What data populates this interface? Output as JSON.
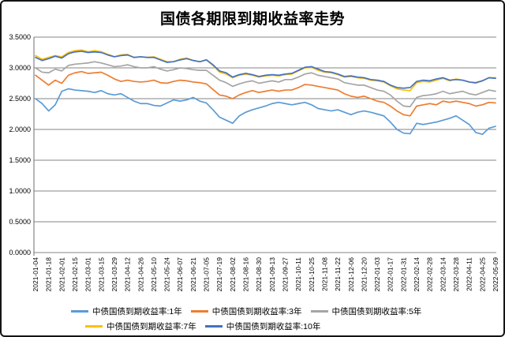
{
  "title": "国债各期限到期收益率走势",
  "chart_data": {
    "type": "line",
    "title": "国债各期限到期收益率走势",
    "xlabel": "",
    "ylabel": "",
    "ylim": [
      0,
      3.5
    ],
    "grid": true,
    "legend_position": "bottom",
    "y_ticks": [
      0,
      0.5,
      1.0,
      1.5,
      2.0,
      2.5,
      3.0,
      3.5
    ],
    "y_tick_labels": [
      "0.0000",
      "0.5000",
      "1.0000",
      "1.5000",
      "2.0000",
      "2.5000",
      "3.0000",
      "3.5000"
    ],
    "x_tick_labels": [
      "2021-01-04",
      "2021-01-18",
      "2021-02-01",
      "2021-02-15",
      "2021-03-01",
      "2021-03-15",
      "2021-03-29",
      "2021-04-12",
      "2021-04-26",
      "2021-05-10",
      "2021-05-24",
      "2021-06-07",
      "2021-06-21",
      "2021-07-05",
      "2021-07-19",
      "2021-08-02",
      "2021-08-16",
      "2021-08-30",
      "2021-09-13",
      "2021-09-27",
      "2021-10-11",
      "2021-10-25",
      "2021-11-08",
      "2021-11-22",
      "2021-12-06",
      "2021-12-20",
      "2022-01-03",
      "2022-01-17",
      "2022-01-31",
      "2022-02-14",
      "2022-02-28",
      "2022-03-14",
      "2022-03-28",
      "2022-04-11",
      "2022-04-25",
      "2022-05-09"
    ],
    "points_per_tick": 2,
    "series": [
      {
        "name": "中债国债到期收益率:1年",
        "color": "#5B9BD5",
        "values": [
          2.5,
          2.42,
          2.3,
          2.4,
          2.62,
          2.66,
          2.64,
          2.63,
          2.62,
          2.6,
          2.63,
          2.58,
          2.56,
          2.58,
          2.52,
          2.46,
          2.42,
          2.42,
          2.39,
          2.38,
          2.43,
          2.48,
          2.46,
          2.48,
          2.52,
          2.46,
          2.43,
          2.32,
          2.2,
          2.15,
          2.1,
          2.22,
          2.28,
          2.32,
          2.35,
          2.38,
          2.42,
          2.44,
          2.42,
          2.4,
          2.42,
          2.44,
          2.4,
          2.34,
          2.32,
          2.3,
          2.32,
          2.28,
          2.24,
          2.28,
          2.3,
          2.28,
          2.25,
          2.22,
          2.12,
          2.0,
          1.94,
          1.93,
          2.1,
          2.08,
          2.1,
          2.12,
          2.15,
          2.18,
          2.22,
          2.15,
          2.08,
          1.95,
          1.92,
          2.02,
          2.05
        ]
      },
      {
        "name": "中债国债到期收益率:3年",
        "color": "#ED7D31",
        "values": [
          2.88,
          2.8,
          2.72,
          2.8,
          2.75,
          2.88,
          2.92,
          2.94,
          2.91,
          2.92,
          2.93,
          2.88,
          2.82,
          2.78,
          2.8,
          2.78,
          2.77,
          2.78,
          2.8,
          2.76,
          2.75,
          2.78,
          2.8,
          2.79,
          2.77,
          2.76,
          2.74,
          2.65,
          2.56,
          2.54,
          2.5,
          2.56,
          2.6,
          2.63,
          2.6,
          2.62,
          2.64,
          2.62,
          2.64,
          2.64,
          2.68,
          2.73,
          2.72,
          2.7,
          2.68,
          2.66,
          2.64,
          2.58,
          2.54,
          2.52,
          2.54,
          2.5,
          2.46,
          2.44,
          2.38,
          2.3,
          2.24,
          2.22,
          2.38,
          2.4,
          2.42,
          2.4,
          2.46,
          2.44,
          2.46,
          2.44,
          2.42,
          2.38,
          2.4,
          2.44,
          2.43
        ]
      },
      {
        "name": "中债国债到期收益率:5年",
        "color": "#A5A5A5",
        "values": [
          3.0,
          2.93,
          2.92,
          2.98,
          2.95,
          3.04,
          3.06,
          3.07,
          3.08,
          3.1,
          3.08,
          3.05,
          3.02,
          3.03,
          3.05,
          3.02,
          3.0,
          3.0,
          3.02,
          2.98,
          2.95,
          2.97,
          3.0,
          2.99,
          2.97,
          2.96,
          2.96,
          2.88,
          2.8,
          2.76,
          2.7,
          2.74,
          2.77,
          2.79,
          2.75,
          2.77,
          2.79,
          2.77,
          2.81,
          2.81,
          2.85,
          2.9,
          2.92,
          2.88,
          2.86,
          2.84,
          2.82,
          2.76,
          2.74,
          2.72,
          2.72,
          2.68,
          2.64,
          2.62,
          2.56,
          2.46,
          2.38,
          2.37,
          2.52,
          2.55,
          2.56,
          2.58,
          2.62,
          2.58,
          2.6,
          2.62,
          2.58,
          2.56,
          2.6,
          2.64,
          2.62
        ]
      },
      {
        "name": "中债国债到期收益率:7年",
        "color": "#FFC000",
        "values": [
          3.2,
          3.14,
          3.17,
          3.2,
          3.18,
          3.25,
          3.28,
          3.29,
          3.26,
          3.28,
          3.26,
          3.22,
          3.18,
          3.21,
          3.22,
          3.17,
          3.18,
          3.17,
          3.18,
          3.14,
          3.1,
          3.1,
          3.14,
          3.16,
          3.12,
          3.1,
          3.13,
          3.04,
          2.93,
          2.9,
          2.84,
          2.88,
          2.9,
          2.88,
          2.85,
          2.87,
          2.88,
          2.87,
          2.89,
          2.9,
          2.95,
          3.0,
          3.01,
          2.96,
          2.93,
          2.92,
          2.89,
          2.85,
          2.86,
          2.84,
          2.83,
          2.8,
          2.79,
          2.77,
          2.71,
          2.66,
          2.64,
          2.63,
          2.76,
          2.78,
          2.77,
          2.8,
          2.83,
          2.79,
          2.82,
          2.8,
          2.77,
          2.75,
          2.79,
          2.84,
          2.84
        ]
      },
      {
        "name": "中债国债到期收益率:10年",
        "color": "#4472C4",
        "values": [
          3.17,
          3.12,
          3.15,
          3.19,
          3.16,
          3.23,
          3.26,
          3.27,
          3.25,
          3.26,
          3.25,
          3.21,
          3.18,
          3.2,
          3.21,
          3.17,
          3.18,
          3.17,
          3.17,
          3.13,
          3.09,
          3.1,
          3.13,
          3.15,
          3.12,
          3.1,
          3.13,
          3.05,
          2.95,
          2.92,
          2.85,
          2.89,
          2.91,
          2.89,
          2.86,
          2.88,
          2.89,
          2.88,
          2.9,
          2.91,
          2.96,
          3.01,
          3.02,
          2.98,
          2.94,
          2.93,
          2.9,
          2.86,
          2.87,
          2.85,
          2.84,
          2.81,
          2.8,
          2.78,
          2.72,
          2.68,
          2.67,
          2.68,
          2.78,
          2.8,
          2.79,
          2.82,
          2.84,
          2.8,
          2.81,
          2.8,
          2.77,
          2.76,
          2.79,
          2.84,
          2.83
        ]
      }
    ],
    "colors": {
      "gridline": "#848484",
      "axis": "#6e6e6e",
      "tick_text": "#000000"
    }
  }
}
